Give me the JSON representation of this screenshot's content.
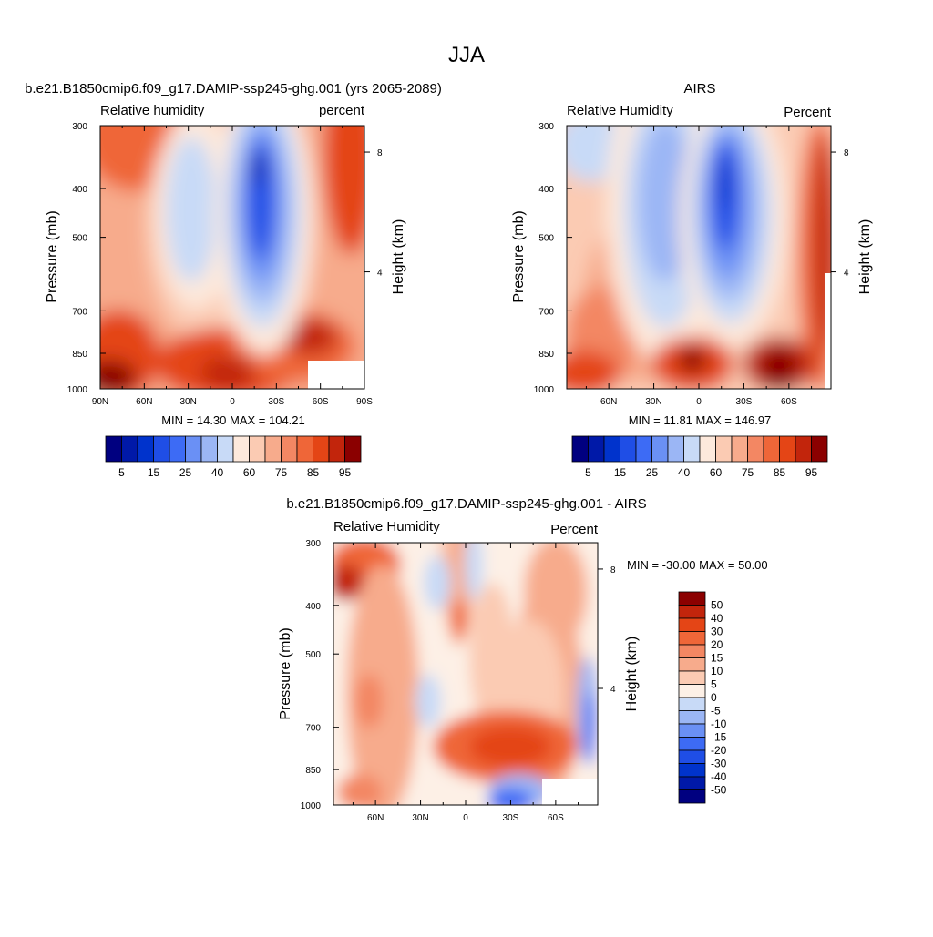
{
  "figure": {
    "title": "JJA"
  },
  "colors": {
    "rh_levels": [
      "#000080",
      "#0019a8",
      "#0033cc",
      "#1f4ee6",
      "#3d6bf5",
      "#6a90f5",
      "#9bb6f5",
      "#c8daf7",
      "#fde9dc",
      "#fbcbb3",
      "#f7ab8c",
      "#f38763",
      "#ef6638",
      "#e44516",
      "#c2250c",
      "#8b0000"
    ],
    "diff_levels": [
      "#000080",
      "#0019a8",
      "#0033cc",
      "#1f4ee6",
      "#3d6bf5",
      "#6a90f5",
      "#9bb6f5",
      "#c8daf7",
      "#fdf0e6",
      "#fbcbb3",
      "#f7ab8c",
      "#f38763",
      "#ef6638",
      "#e44516",
      "#c2250c",
      "#8b0000"
    ]
  },
  "chart_data": [
    {
      "type": "heatmap",
      "title": "b.e21.B1850cmip6.f09_g17.DAMIP-ssp245-ghg.001 (yrs 2065-2089)",
      "subtitle_left": "Relative humidity",
      "subtitle_right": "percent",
      "ylabel": "Pressure (mb)",
      "ylabel_right": "Height (km)",
      "y_ticks": [
        "300",
        "400",
        "500",
        "700",
        "850",
        "1000"
      ],
      "y_right_ticks": [
        "8",
        "4"
      ],
      "x_ticks": [
        "90N",
        "60N",
        "30N",
        "0",
        "30S",
        "60S",
        "90S"
      ],
      "stats": "MIN =  14.30  MAX = 104.21",
      "colorbar_labels": [
        "5",
        "15",
        "25",
        "40",
        "60",
        "75",
        "85",
        "95"
      ],
      "latitude_range": [
        90,
        -90
      ],
      "pressure_range": [
        300,
        1000
      ]
    },
    {
      "type": "heatmap",
      "title": "AIRS",
      "subtitle_left": "Relative Humidity",
      "subtitle_right": "Percent",
      "ylabel": "Pressure (mb)",
      "ylabel_right": "Height (km)",
      "y_ticks": [
        "300",
        "400",
        "500",
        "700",
        "850",
        "1000"
      ],
      "y_right_ticks": [
        "8",
        "4"
      ],
      "x_ticks": [
        "60N",
        "30N",
        "0",
        "30S",
        "60S"
      ],
      "stats": "MIN =  11.81  MAX = 146.97",
      "colorbar_labels": [
        "5",
        "15",
        "25",
        "40",
        "60",
        "75",
        "85",
        "95"
      ]
    },
    {
      "type": "heatmap",
      "title": "b.e21.B1850cmip6.f09_g17.DAMIP-ssp245-ghg.001 - AIRS",
      "subtitle_left": "Relative Humidity",
      "subtitle_right": "Percent",
      "ylabel": "Pressure (mb)",
      "ylabel_right": "Height (km)",
      "y_ticks": [
        "300",
        "400",
        "500",
        "700",
        "850",
        "1000"
      ],
      "y_right_ticks": [
        "8",
        "4"
      ],
      "x_ticks": [
        "60N",
        "30N",
        "0",
        "30S",
        "60S"
      ],
      "stats": "MIN = -30.00  MAX =  50.00",
      "colorbar_labels": [
        "50",
        "40",
        "30",
        "20",
        "15",
        "10",
        "5",
        "0",
        "-5",
        "-10",
        "-15",
        "-20",
        "-30",
        "-40",
        "-50"
      ]
    }
  ]
}
